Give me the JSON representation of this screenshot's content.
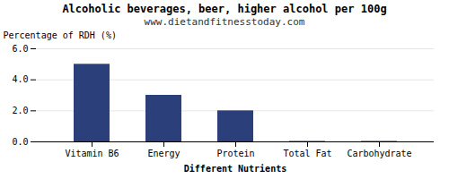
{
  "chart_data": {
    "type": "bar",
    "title": "Alcoholic beverages, beer, higher alcohol per 100g",
    "subtitle": "www.dietandfitnesstoday.com",
    "xlabel": "Different Nutrients",
    "ylabel": "Percentage of RDH (%)",
    "categories": [
      "Vitamin B6",
      "Energy",
      "Protein",
      "Total Fat",
      "Carbohydrate"
    ],
    "values": [
      5.0,
      3.0,
      2.0,
      0.03,
      0.03
    ],
    "color": "#2b3f7a",
    "ylim": [
      0,
      6
    ],
    "yticks": [
      0,
      2,
      4,
      6
    ],
    "grid": true
  }
}
